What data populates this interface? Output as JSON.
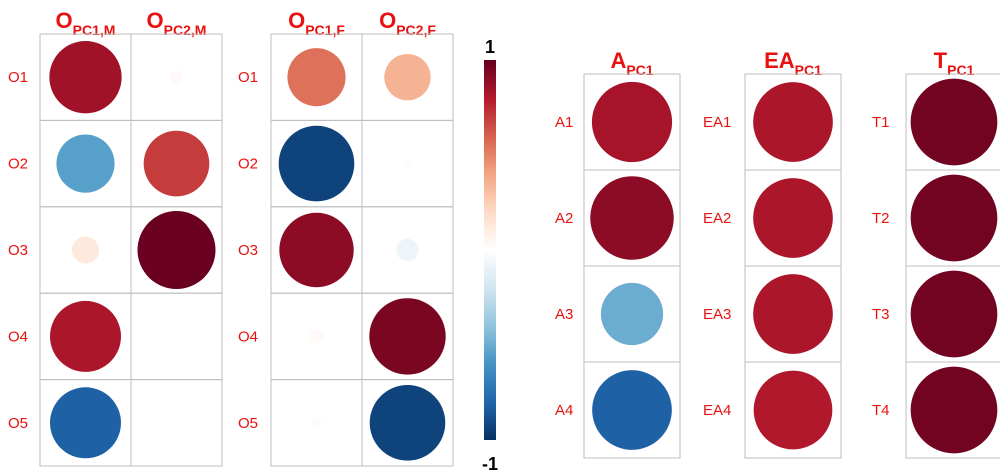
{
  "chart_data": [
    {
      "type": "heatmap",
      "columns": [
        {
          "main": "O",
          "sub": "PC1,M"
        },
        {
          "main": "O",
          "sub": "PC2,M"
        }
      ],
      "rows": [
        "O1",
        "O2",
        "O3",
        "O4",
        "O5"
      ],
      "values": [
        [
          0.85,
          0.03
        ],
        [
          -0.55,
          0.7
        ],
        [
          0.12,
          0.99
        ],
        [
          0.82,
          0.0
        ],
        [
          -0.82,
          0.0
        ]
      ]
    },
    {
      "type": "heatmap",
      "columns": [
        {
          "main": "O",
          "sub": "PC1,F"
        },
        {
          "main": "O",
          "sub": "PC2,F"
        }
      ],
      "rows": [
        "O1",
        "O2",
        "O3",
        "O4",
        "O5"
      ],
      "values": [
        [
          0.55,
          0.35
        ],
        [
          -0.93,
          0.01
        ],
        [
          0.9,
          -0.08
        ],
        [
          0.03,
          0.95
        ],
        [
          0.02,
          -0.93
        ]
      ]
    },
    {
      "type": "heatmap",
      "columns": [
        {
          "main": "A",
          "sub": "PC1"
        }
      ],
      "rows": [
        "A1",
        "A2",
        "A3",
        "A4"
      ],
      "values": [
        [
          0.83
        ],
        [
          0.9
        ],
        [
          -0.5
        ],
        [
          -0.82
        ]
      ]
    },
    {
      "type": "heatmap",
      "columns": [
        {
          "main": "EA",
          "sub": "PC1"
        }
      ],
      "rows": [
        "EA1",
        "EA2",
        "EA3",
        "EA4"
      ],
      "values": [
        [
          0.82
        ],
        [
          0.82
        ],
        [
          0.82
        ],
        [
          0.8
        ]
      ]
    },
    {
      "type": "heatmap",
      "columns": [
        {
          "main": "T",
          "sub": "PC1"
        }
      ],
      "rows": [
        "T1",
        "T2",
        "T3",
        "T4"
      ],
      "values": [
        [
          0.97
        ],
        [
          0.97
        ],
        [
          0.97
        ],
        [
          0.97
        ]
      ]
    }
  ],
  "colorbar": {
    "max_label": "1",
    "min_label": "-1",
    "range": [
      -1,
      1
    ]
  },
  "colors": {
    "label": "#e8110f",
    "scale": [
      "#053061",
      "#2166ac",
      "#4393c3",
      "#92c5de",
      "#d1e5f0",
      "#ffffff",
      "#fddbc7",
      "#f4a582",
      "#d6604d",
      "#b2182b",
      "#67001f"
    ]
  }
}
